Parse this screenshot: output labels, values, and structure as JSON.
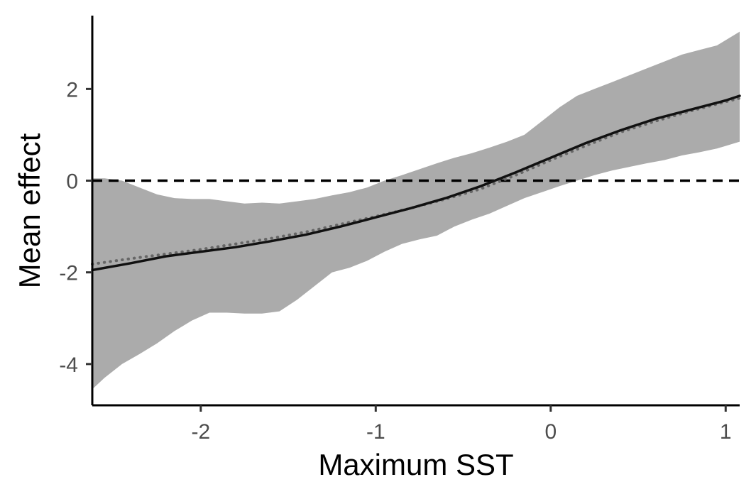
{
  "chart_data": {
    "type": "line",
    "title": "",
    "xlabel": "Maximum SST",
    "ylabel": "Mean effect",
    "xlim": [
      -2.62,
      1.08
    ],
    "ylim": [
      -4.9,
      3.6
    ],
    "x_ticks": [
      {
        "value": -2,
        "label": "-2"
      },
      {
        "value": -1,
        "label": "-1"
      },
      {
        "value": 0,
        "label": "0"
      },
      {
        "value": 1,
        "label": "1"
      }
    ],
    "y_ticks": [
      {
        "value": -4,
        "label": "-4"
      },
      {
        "value": -2,
        "label": "-2"
      },
      {
        "value": 0,
        "label": "0"
      },
      {
        "value": 2,
        "label": "2"
      }
    ],
    "grid": false,
    "legend": "none",
    "reference_line": {
      "y": 0,
      "style": "dashed",
      "color": "#000000"
    },
    "ribbon": {
      "color": "#ababab",
      "x": [
        -2.62,
        -2.55,
        -2.45,
        -2.35,
        -2.25,
        -2.15,
        -2.05,
        -1.95,
        -1.85,
        -1.75,
        -1.65,
        -1.55,
        -1.45,
        -1.35,
        -1.25,
        -1.15,
        -1.05,
        -0.95,
        -0.85,
        -0.75,
        -0.65,
        -0.55,
        -0.45,
        -0.35,
        -0.25,
        -0.15,
        -0.05,
        0.05,
        0.15,
        0.25,
        0.35,
        0.45,
        0.55,
        0.65,
        0.75,
        0.85,
        0.95,
        1.08
      ],
      "lower": [
        -4.55,
        -4.3,
        -4.0,
        -3.78,
        -3.55,
        -3.28,
        -3.05,
        -2.88,
        -2.88,
        -2.9,
        -2.9,
        -2.85,
        -2.6,
        -2.3,
        -2.0,
        -1.9,
        -1.75,
        -1.55,
        -1.38,
        -1.28,
        -1.2,
        -1.0,
        -0.85,
        -0.72,
        -0.55,
        -0.38,
        -0.25,
        -0.12,
        0.0,
        0.12,
        0.22,
        0.3,
        0.38,
        0.45,
        0.55,
        0.62,
        0.7,
        0.85
      ],
      "upper": [
        0.05,
        0.05,
        0.0,
        -0.15,
        -0.3,
        -0.38,
        -0.4,
        -0.4,
        -0.45,
        -0.5,
        -0.48,
        -0.5,
        -0.45,
        -0.4,
        -0.32,
        -0.25,
        -0.15,
        0.0,
        0.12,
        0.25,
        0.38,
        0.5,
        0.6,
        0.72,
        0.85,
        1.0,
        1.3,
        1.6,
        1.85,
        2.0,
        2.15,
        2.3,
        2.45,
        2.6,
        2.75,
        2.85,
        2.95,
        3.25
      ]
    },
    "series": [
      {
        "style": "solid",
        "color": "#111111",
        "x": [
          -2.62,
          -2.4,
          -2.2,
          -2.0,
          -1.8,
          -1.6,
          -1.4,
          -1.2,
          -1.0,
          -0.8,
          -0.6,
          -0.4,
          -0.2,
          0.0,
          0.2,
          0.4,
          0.6,
          0.8,
          1.0,
          1.08
        ],
        "y": [
          -1.95,
          -1.8,
          -1.65,
          -1.55,
          -1.45,
          -1.32,
          -1.18,
          -1.0,
          -0.8,
          -0.6,
          -0.38,
          -0.12,
          0.18,
          0.5,
          0.82,
          1.1,
          1.35,
          1.55,
          1.75,
          1.85
        ]
      },
      {
        "style": "dotted",
        "color": "#666666",
        "x": [
          -2.62,
          -2.4,
          -2.2,
          -2.0,
          -1.8,
          -1.6,
          -1.4,
          -1.2,
          -1.0,
          -0.8,
          -0.6,
          -0.4,
          -0.2,
          0.0,
          0.2,
          0.4,
          0.6,
          0.8,
          1.0,
          1.08
        ],
        "y": [
          -1.82,
          -1.7,
          -1.6,
          -1.5,
          -1.38,
          -1.26,
          -1.12,
          -0.95,
          -0.78,
          -0.6,
          -0.4,
          -0.18,
          0.12,
          0.45,
          0.76,
          1.06,
          1.3,
          1.52,
          1.72,
          1.8
        ]
      }
    ]
  }
}
